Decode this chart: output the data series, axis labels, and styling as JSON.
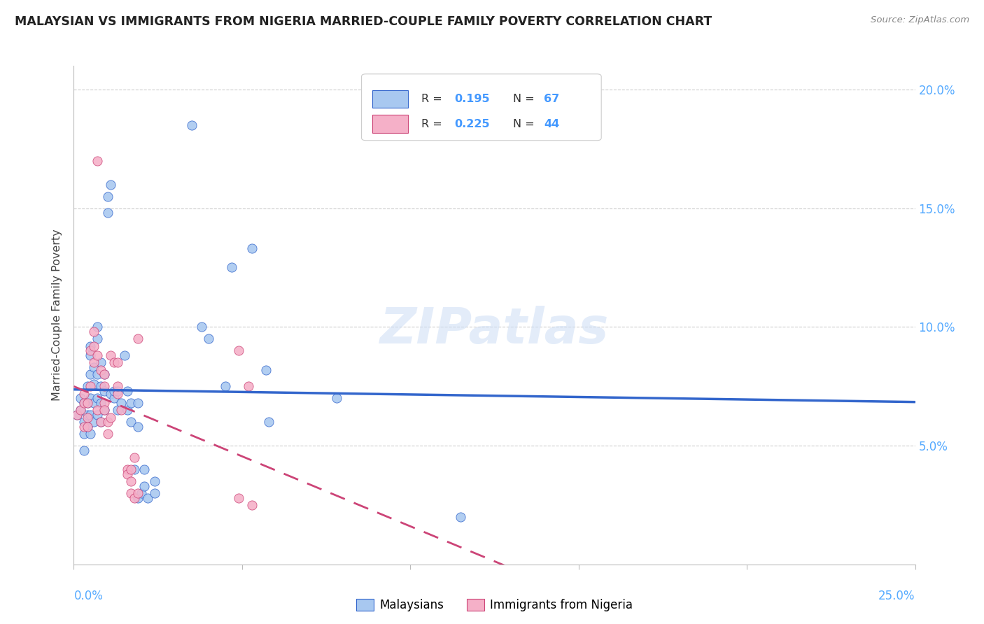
{
  "title": "MALAYSIAN VS IMMIGRANTS FROM NIGERIA MARRIED-COUPLE FAMILY POVERTY CORRELATION CHART",
  "source": "Source: ZipAtlas.com",
  "ylabel": "Married-Couple Family Poverty",
  "xlim": [
    0.0,
    0.25
  ],
  "ylim": [
    0.0,
    0.21
  ],
  "ytick_vals": [
    0.05,
    0.1,
    0.15,
    0.2
  ],
  "ytick_labels": [
    "5.0%",
    "10.0%",
    "15.0%",
    "20.0%"
  ],
  "xtick_vals": [
    0.0,
    0.05,
    0.1,
    0.15,
    0.2,
    0.25
  ],
  "blue_color": "#a8c8f0",
  "pink_color": "#f5b0c8",
  "line_blue_color": "#3366cc",
  "line_pink_color": "#cc4477",
  "r_n_color": "#4499ff",
  "label_color": "#55aaff",
  "blue_r": "0.195",
  "blue_n": "67",
  "pink_r": "0.225",
  "pink_n": "44",
  "watermark": "ZIPatlas",
  "blue_points": [
    [
      0.001,
      0.063
    ],
    [
      0.002,
      0.07
    ],
    [
      0.002,
      0.065
    ],
    [
      0.003,
      0.06
    ],
    [
      0.003,
      0.068
    ],
    [
      0.003,
      0.055
    ],
    [
      0.003,
      0.048
    ],
    [
      0.004,
      0.075
    ],
    [
      0.004,
      0.068
    ],
    [
      0.004,
      0.063
    ],
    [
      0.004,
      0.058
    ],
    [
      0.005,
      0.092
    ],
    [
      0.005,
      0.088
    ],
    [
      0.005,
      0.08
    ],
    [
      0.005,
      0.07
    ],
    [
      0.005,
      0.063
    ],
    [
      0.005,
      0.055
    ],
    [
      0.006,
      0.083
    ],
    [
      0.006,
      0.076
    ],
    [
      0.006,
      0.068
    ],
    [
      0.006,
      0.06
    ],
    [
      0.007,
      0.1
    ],
    [
      0.007,
      0.095
    ],
    [
      0.007,
      0.08
    ],
    [
      0.007,
      0.07
    ],
    [
      0.007,
      0.063
    ],
    [
      0.008,
      0.085
    ],
    [
      0.008,
      0.075
    ],
    [
      0.008,
      0.068
    ],
    [
      0.008,
      0.06
    ],
    [
      0.009,
      0.08
    ],
    [
      0.009,
      0.073
    ],
    [
      0.009,
      0.065
    ],
    [
      0.01,
      0.155
    ],
    [
      0.01,
      0.148
    ],
    [
      0.011,
      0.16
    ],
    [
      0.011,
      0.072
    ],
    [
      0.012,
      0.07
    ],
    [
      0.012,
      0.073
    ],
    [
      0.013,
      0.073
    ],
    [
      0.013,
      0.065
    ],
    [
      0.014,
      0.068
    ],
    [
      0.015,
      0.088
    ],
    [
      0.016,
      0.073
    ],
    [
      0.016,
      0.065
    ],
    [
      0.017,
      0.06
    ],
    [
      0.017,
      0.068
    ],
    [
      0.018,
      0.04
    ],
    [
      0.019,
      0.058
    ],
    [
      0.019,
      0.068
    ],
    [
      0.019,
      0.028
    ],
    [
      0.02,
      0.03
    ],
    [
      0.021,
      0.033
    ],
    [
      0.022,
      0.028
    ],
    [
      0.024,
      0.03
    ],
    [
      0.035,
      0.185
    ],
    [
      0.038,
      0.1
    ],
    [
      0.04,
      0.095
    ],
    [
      0.045,
      0.075
    ],
    [
      0.047,
      0.125
    ],
    [
      0.053,
      0.133
    ],
    [
      0.057,
      0.082
    ],
    [
      0.058,
      0.06
    ],
    [
      0.078,
      0.07
    ],
    [
      0.021,
      0.04
    ],
    [
      0.024,
      0.035
    ],
    [
      0.115,
      0.02
    ]
  ],
  "pink_points": [
    [
      0.001,
      0.063
    ],
    [
      0.002,
      0.065
    ],
    [
      0.003,
      0.068
    ],
    [
      0.003,
      0.058
    ],
    [
      0.003,
      0.072
    ],
    [
      0.004,
      0.062
    ],
    [
      0.004,
      0.058
    ],
    [
      0.004,
      0.068
    ],
    [
      0.005,
      0.09
    ],
    [
      0.005,
      0.075
    ],
    [
      0.006,
      0.085
    ],
    [
      0.006,
      0.092
    ],
    [
      0.006,
      0.098
    ],
    [
      0.007,
      0.088
    ],
    [
      0.007,
      0.17
    ],
    [
      0.007,
      0.065
    ],
    [
      0.008,
      0.082
    ],
    [
      0.008,
      0.06
    ],
    [
      0.009,
      0.068
    ],
    [
      0.009,
      0.075
    ],
    [
      0.009,
      0.08
    ],
    [
      0.009,
      0.065
    ],
    [
      0.01,
      0.055
    ],
    [
      0.01,
      0.06
    ],
    [
      0.011,
      0.062
    ],
    [
      0.011,
      0.088
    ],
    [
      0.012,
      0.085
    ],
    [
      0.013,
      0.072
    ],
    [
      0.013,
      0.085
    ],
    [
      0.013,
      0.075
    ],
    [
      0.014,
      0.065
    ],
    [
      0.016,
      0.04
    ],
    [
      0.016,
      0.038
    ],
    [
      0.017,
      0.035
    ],
    [
      0.017,
      0.04
    ],
    [
      0.017,
      0.03
    ],
    [
      0.018,
      0.045
    ],
    [
      0.018,
      0.028
    ],
    [
      0.019,
      0.03
    ],
    [
      0.019,
      0.095
    ],
    [
      0.049,
      0.09
    ],
    [
      0.052,
      0.075
    ],
    [
      0.049,
      0.028
    ],
    [
      0.053,
      0.025
    ]
  ]
}
